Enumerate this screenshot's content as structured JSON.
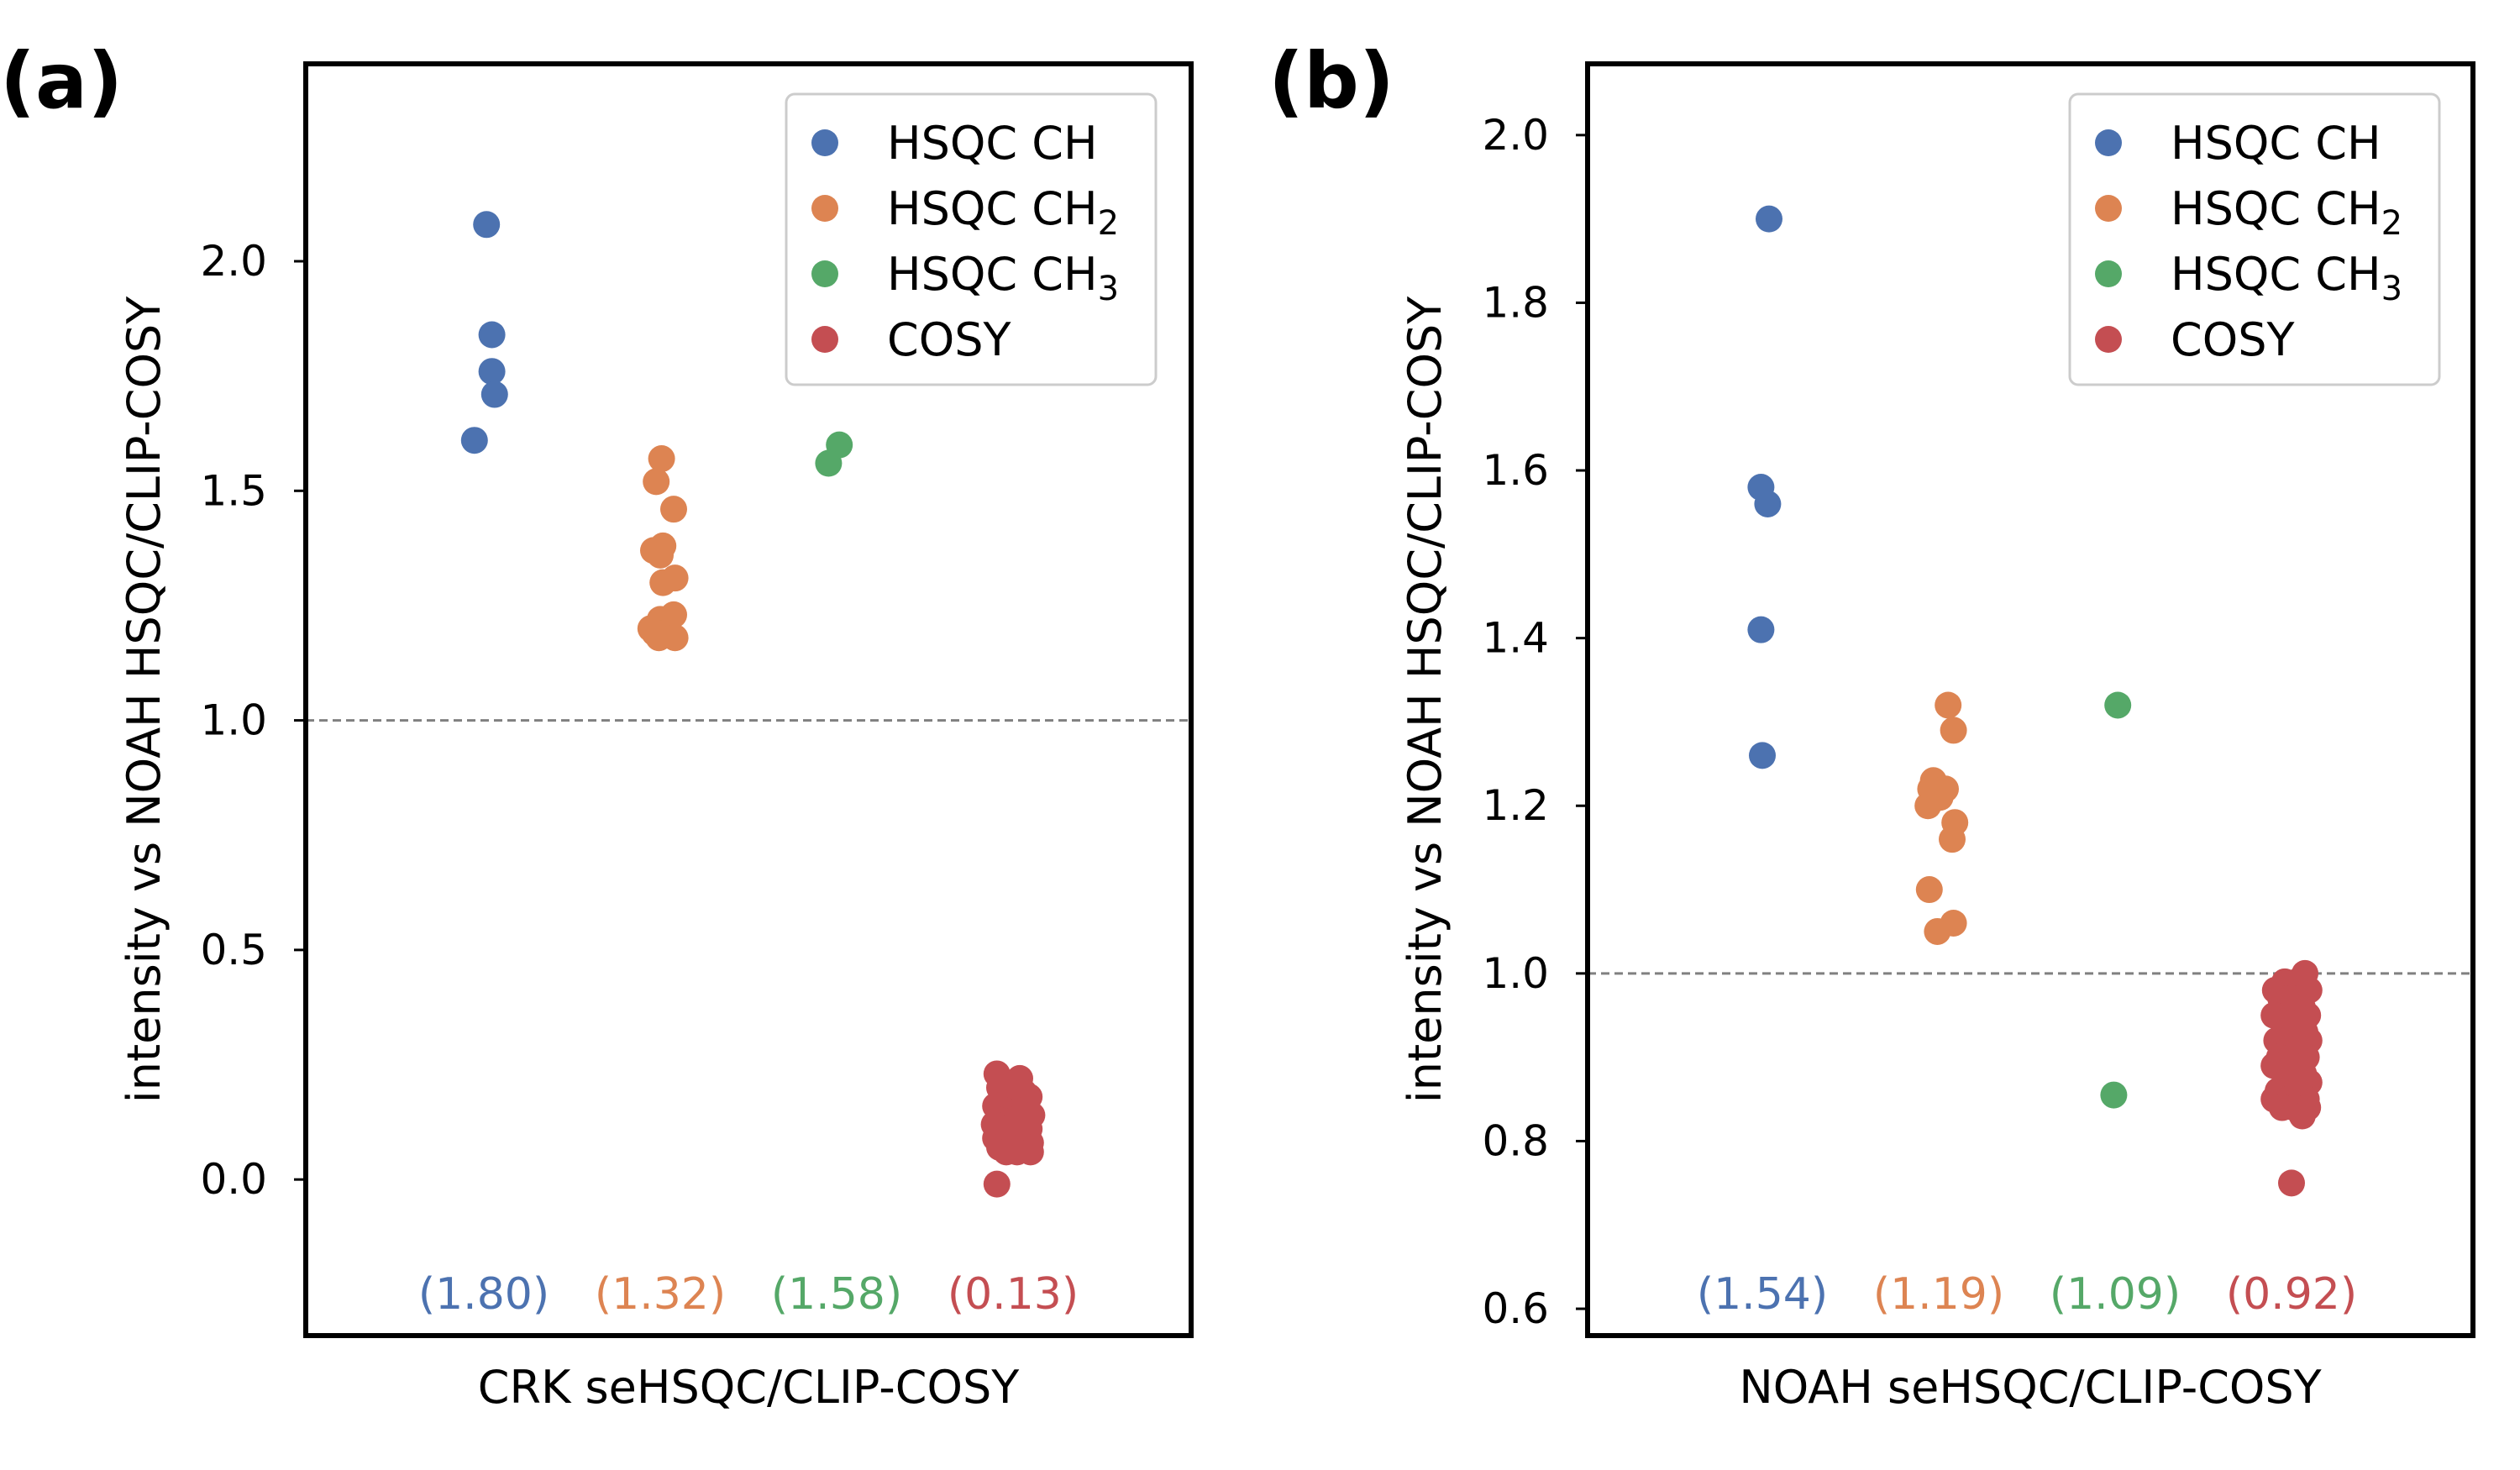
{
  "colors": {
    "HSQC CH": "#4c72b0",
    "HSQC CH2": "#dd8452",
    "HSQC CH3": "#55a868",
    "COSY": "#c44e52",
    "reference_line": "#808080"
  },
  "legend_entries": [
    {
      "key": "HSQC CH",
      "text": "HSQC CH",
      "sub": ""
    },
    {
      "key": "HSQC CH2",
      "text": "HSQC CH",
      "sub": "2"
    },
    {
      "key": "HSQC CH3",
      "text": "HSQC CH",
      "sub": "3"
    },
    {
      "key": "COSY",
      "text": "COSY",
      "sub": ""
    }
  ],
  "chart_data": [
    {
      "type": "scatter",
      "panel": "(a)",
      "xlabel": "CRK seHSQC/CLIP-COSY",
      "ylabel": "intensity vs NOAH HSQC/CLIP-COSY",
      "ylim": [
        -0.34,
        2.43
      ],
      "yticks": [
        "0.0",
        "0.5",
        "1.0",
        "1.5",
        "2.0"
      ],
      "ytick_values": [
        0.0,
        0.5,
        1.0,
        1.5,
        2.0
      ],
      "reference_line": 1.0,
      "legend": "top-right",
      "series": [
        {
          "name": "HSQC CH",
          "category": 0,
          "mean_label": "(1.80)",
          "points": [
            [
              0.02,
              2.08
            ],
            [
              0.06,
              1.84
            ],
            [
              0.06,
              1.76
            ],
            [
              0.08,
              1.71
            ],
            [
              -0.07,
              1.61
            ]
          ]
        },
        {
          "name": "HSQC CH2",
          "category": 1,
          "mean_label": "(1.32)",
          "points": [
            [
              0.01,
              1.57
            ],
            [
              -0.03,
              1.52
            ],
            [
              0.1,
              1.46
            ],
            [
              0.02,
              1.38
            ],
            [
              -0.05,
              1.37
            ],
            [
              0.0,
              1.36
            ],
            [
              0.11,
              1.31
            ],
            [
              0.02,
              1.3
            ],
            [
              0.1,
              1.23
            ],
            [
              0.0,
              1.22
            ],
            [
              -0.07,
              1.2
            ],
            [
              -0.04,
              1.19
            ],
            [
              0.04,
              1.19
            ],
            [
              -0.01,
              1.18
            ],
            [
              0.11,
              1.18
            ]
          ]
        },
        {
          "name": "HSQC CH3",
          "category": 2,
          "mean_label": "(1.58)",
          "points": [
            [
              0.02,
              1.6
            ],
            [
              -0.06,
              1.56
            ]
          ]
        },
        {
          "name": "COSY",
          "category": 3,
          "mean_label": "(0.13)",
          "points": [
            [
              -0.12,
              0.23
            ],
            [
              0.05,
              0.22
            ],
            [
              -0.1,
              0.2
            ],
            [
              0.08,
              0.19
            ],
            [
              0.12,
              0.18
            ],
            [
              -0.02,
              0.18
            ],
            [
              -0.13,
              0.16
            ],
            [
              0.1,
              0.16
            ],
            [
              0.03,
              0.15
            ],
            [
              -0.06,
              0.15
            ],
            [
              0.14,
              0.14
            ],
            [
              -0.11,
              0.13
            ],
            [
              0.01,
              0.13
            ],
            [
              0.07,
              0.12
            ],
            [
              -0.14,
              0.12
            ],
            [
              0.12,
              0.11
            ],
            [
              -0.04,
              0.11
            ],
            [
              0.09,
              0.1
            ],
            [
              -0.08,
              0.1
            ],
            [
              0.02,
              0.09
            ],
            [
              -0.13,
              0.09
            ],
            [
              0.13,
              0.08
            ],
            [
              -0.02,
              0.08
            ],
            [
              0.06,
              0.07
            ],
            [
              -0.1,
              0.07
            ],
            [
              0.1,
              0.07
            ],
            [
              -0.05,
              0.06
            ],
            [
              0.03,
              0.06
            ],
            [
              0.13,
              0.06
            ],
            [
              -0.12,
              -0.01
            ]
          ]
        }
      ]
    },
    {
      "type": "scatter",
      "panel": "(b)",
      "xlabel": "NOAH seHSQC/CLIP-COSY",
      "ylabel": "intensity vs NOAH HSQC/CLIP-COSY",
      "ylim": [
        0.568,
        2.085
      ],
      "yticks": [
        "0.6",
        "0.8",
        "1.0",
        "1.2",
        "1.4",
        "1.6",
        "1.8",
        "2.0"
      ],
      "ytick_values": [
        0.6,
        0.8,
        1.0,
        1.2,
        1.4,
        1.6,
        1.8,
        2.0
      ],
      "reference_line": 1.0,
      "legend": "top-right",
      "series": [
        {
          "name": "HSQC CH",
          "category": 0,
          "mean_label": "(1.54)",
          "points": [
            [
              0.05,
              1.9
            ],
            [
              -0.01,
              1.58
            ],
            [
              0.04,
              1.56
            ],
            [
              -0.01,
              1.41
            ],
            [
              0.0,
              1.26
            ]
          ]
        },
        {
          "name": "HSQC CH2",
          "category": 1,
          "mean_label": "(1.19)",
          "points": [
            [
              0.07,
              1.32
            ],
            [
              0.11,
              1.29
            ],
            [
              -0.04,
              1.23
            ],
            [
              0.02,
              1.22
            ],
            [
              -0.06,
              1.22
            ],
            [
              0.01,
              1.21
            ],
            [
              0.05,
              1.22
            ],
            [
              -0.08,
              1.2
            ],
            [
              0.12,
              1.18
            ],
            [
              0.1,
              1.16
            ],
            [
              -0.07,
              1.1
            ],
            [
              0.11,
              1.06
            ],
            [
              -0.01,
              1.05
            ]
          ]
        },
        {
          "name": "HSQC CH3",
          "category": 2,
          "mean_label": "(1.09)",
          "points": [
            [
              0.02,
              1.32
            ],
            [
              -0.01,
              0.855
            ]
          ]
        },
        {
          "name": "COSY",
          "category": 3,
          "mean_label": "(0.92)",
          "points": [
            [
              0.1,
              1.0
            ],
            [
              -0.05,
              0.99
            ],
            [
              0.04,
              0.99
            ],
            [
              -0.12,
              0.98
            ],
            [
              0.13,
              0.98
            ],
            [
              0.0,
              0.97
            ],
            [
              -0.08,
              0.97
            ],
            [
              0.08,
              0.96
            ],
            [
              -0.03,
              0.96
            ],
            [
              0.12,
              0.95
            ],
            [
              -0.13,
              0.95
            ],
            [
              0.05,
              0.94
            ],
            [
              -0.06,
              0.94
            ],
            [
              0.1,
              0.93
            ],
            [
              0.02,
              0.93
            ],
            [
              -0.11,
              0.92
            ],
            [
              0.13,
              0.92
            ],
            [
              -0.02,
              0.91
            ],
            [
              0.07,
              0.91
            ],
            [
              -0.09,
              0.9
            ],
            [
              0.11,
              0.9
            ],
            [
              0.01,
              0.89
            ],
            [
              -0.13,
              0.89
            ],
            [
              0.09,
              0.88
            ],
            [
              -0.05,
              0.88
            ],
            [
              0.04,
              0.87
            ],
            [
              0.13,
              0.87
            ],
            [
              -0.1,
              0.86
            ],
            [
              0.06,
              0.86
            ],
            [
              -0.02,
              0.85
            ],
            [
              0.11,
              0.85
            ],
            [
              -0.13,
              0.85
            ],
            [
              0.02,
              0.84
            ],
            [
              0.12,
              0.84
            ],
            [
              -0.07,
              0.84
            ],
            [
              0.08,
              0.83
            ],
            [
              0.0,
              0.75
            ]
          ]
        }
      ]
    }
  ]
}
